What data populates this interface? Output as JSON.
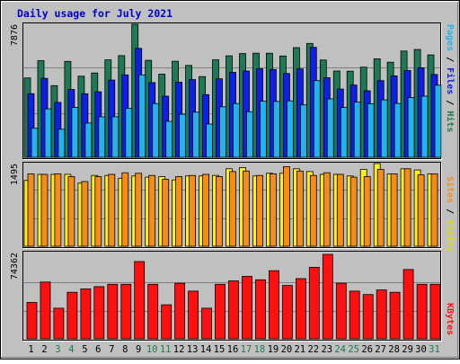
{
  "chart_data": {
    "type": "bar",
    "title": "Daily usage for July 2021",
    "days": [
      "1",
      "2",
      "3",
      "4",
      "5",
      "6",
      "7",
      "8",
      "9",
      "10",
      "11",
      "12",
      "13",
      "14",
      "15",
      "16",
      "17",
      "18",
      "19",
      "20",
      "21",
      "22",
      "23",
      "24",
      "25",
      "26",
      "27",
      "28",
      "29",
      "30",
      "31"
    ],
    "weekend_days": [
      "3",
      "4",
      "10",
      "11",
      "17",
      "18",
      "24",
      "25",
      "31"
    ],
    "panels": [
      {
        "id": "hits",
        "ymax_label": "7876",
        "ymax": 7876,
        "legend": {
          "a": "Pages",
          "sep1": " / ",
          "b": "Files",
          "sep2": " / ",
          "c": "Hits"
        },
        "series": [
          {
            "name": "Hits",
            "color": "#1e7a55",
            "values": [
              4700,
              5720,
              4240,
              5680,
              4800,
              4990,
              5770,
              6020,
              7876,
              5740,
              4920,
              5690,
              5440,
              4780,
              5770,
              6010,
              6140,
              6160,
              6160,
              6000,
              6490,
              6740,
              5760,
              5110,
              5100,
              5340,
              5830,
              5630,
              6290,
              6380,
              6060
            ]
          },
          {
            "name": "Files",
            "color": "#0e20e8",
            "values": [
              3770,
              4670,
              3250,
              4020,
              3760,
              3880,
              4570,
              4880,
              6450,
              4420,
              3620,
              4450,
              4600,
              3710,
              4650,
              5030,
              5110,
              5240,
              5200,
              4960,
              5230,
              6510,
              4710,
              4040,
              4280,
              3940,
              4540,
              4820,
              5140,
              5300,
              4900
            ]
          },
          {
            "name": "Pages",
            "color": "#22b2ec",
            "values": [
              1720,
              2870,
              1660,
              2950,
              2030,
              2400,
              2400,
              2900,
              4880,
              3180,
              2130,
              2550,
              2670,
              1970,
              2990,
              3180,
              2700,
              3320,
              3310,
              3340,
              3100,
              4540,
              3460,
              2950,
              3270,
              3170,
              3400,
              3190,
              3540,
              3620,
              4270
            ]
          }
        ]
      },
      {
        "id": "sites",
        "ymax_label": "1495",
        "ymax": 1495,
        "legend": {
          "a": "Sites",
          "sep1": " / ",
          "b": "Visits"
        },
        "series": [
          {
            "name": "Visits",
            "color": "#ffee1a",
            "values": [
              1190,
              1300,
              1300,
              1300,
              1140,
              1280,
              1280,
              1230,
              1270,
              1250,
              1260,
              1200,
              1270,
              1270,
              1280,
              1400,
              1420,
              1270,
              1320,
              1320,
              1400,
              1350,
              1300,
              1300,
              1270,
              1390,
              1495,
              1310,
              1400,
              1380,
              1310
            ]
          },
          {
            "name": "Sites",
            "color": "#f58c18",
            "values": [
              1310,
              1300,
              1310,
              1260,
              1170,
              1260,
              1300,
              1330,
              1320,
              1280,
              1210,
              1260,
              1280,
              1300,
              1260,
              1350,
              1360,
              1280,
              1310,
              1440,
              1360,
              1280,
              1330,
              1300,
              1250,
              1260,
              1390,
              1310,
              1400,
              1290,
              1310
            ]
          }
        ]
      },
      {
        "id": "kbytes",
        "ymax_label": "74362",
        "ymax": 74362,
        "legend": {
          "a": "KBytes"
        },
        "series": [
          {
            "name": "KBytes",
            "color": "#ff1010",
            "values": [
              32000,
              50000,
              27000,
              41000,
              44000,
              46000,
              48000,
              48000,
              68000,
              48000,
              30000,
              49000,
              42000,
              27000,
              48000,
              51000,
              55000,
              52000,
              60000,
              47000,
              53000,
              63000,
              74362,
              49000,
              42000,
              39000,
              43000,
              41000,
              61000,
              48000,
              48000
            ]
          }
        ]
      }
    ]
  }
}
